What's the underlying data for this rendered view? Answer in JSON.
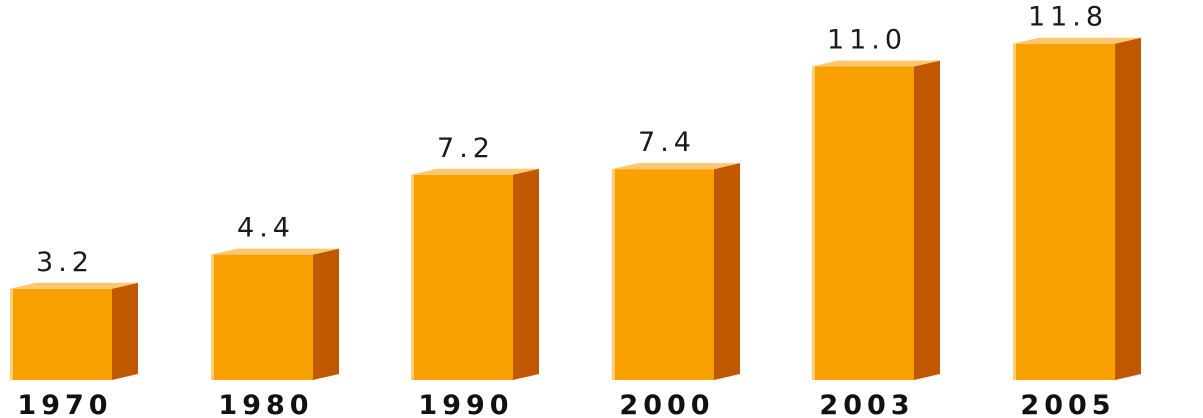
{
  "chart_data": {
    "type": "bar",
    "style": "3d-columns",
    "categories": [
      "1970",
      "1980",
      "1990",
      "2000",
      "2003",
      "2005"
    ],
    "values": [
      3.2,
      4.4,
      7.2,
      7.4,
      11.0,
      11.8
    ],
    "value_labels": [
      "3.2",
      "4.4",
      "7.2",
      "7.4",
      "11.0",
      "11.8"
    ],
    "title": "",
    "xlabel": "",
    "ylabel": "",
    "ylim": [
      0,
      12
    ],
    "grid": false,
    "legend": "none",
    "colors": {
      "front": "#f8a000",
      "side": "#c05800",
      "top": "#ffc870",
      "highlight": "#ffe2b0"
    }
  }
}
